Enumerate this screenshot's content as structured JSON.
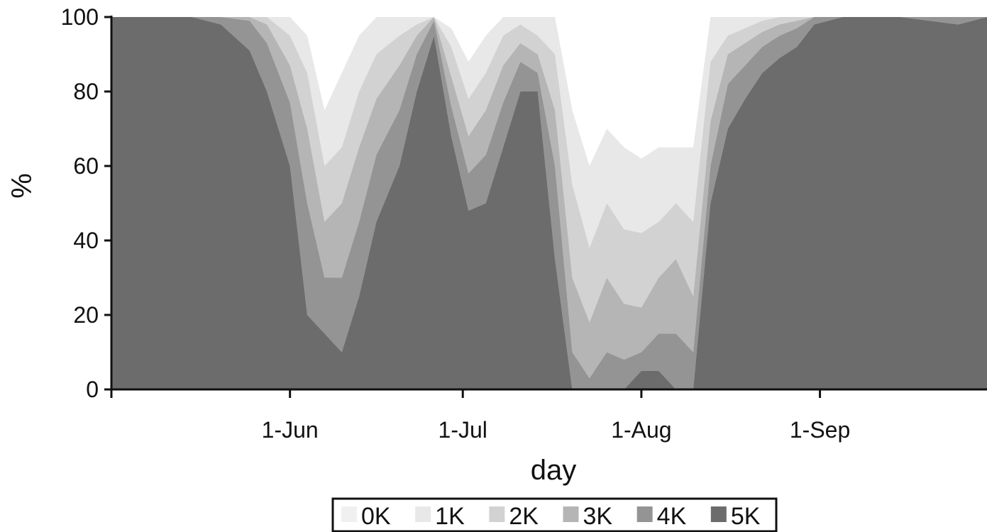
{
  "chart_data": {
    "type": "area",
    "stacked": true,
    "normalized_percent": true,
    "xlabel": "day",
    "ylabel": "%",
    "ylim": [
      0,
      100
    ],
    "y_ticks": [
      0,
      20,
      40,
      60,
      80,
      100
    ],
    "x_ticks": [
      {
        "date": "2015-06-01",
        "label": "1-Jun"
      },
      {
        "date": "2015-07-01",
        "label": "1-Jul"
      },
      {
        "date": "2015-08-01",
        "label": "1-Aug"
      },
      {
        "date": "2015-09-01",
        "label": "1-Sep"
      }
    ],
    "xlim": [
      "2015-05-01",
      "2015-09-30"
    ],
    "legend_position": "bottom-center",
    "grid": false,
    "x": [
      "2015-05-01",
      "2015-05-05",
      "2015-05-10",
      "2015-05-15",
      "2015-05-20",
      "2015-05-25",
      "2015-05-28",
      "2015-06-01",
      "2015-06-04",
      "2015-06-07",
      "2015-06-10",
      "2015-06-13",
      "2015-06-16",
      "2015-06-20",
      "2015-06-23",
      "2015-06-26",
      "2015-06-29",
      "2015-07-02",
      "2015-07-05",
      "2015-07-08",
      "2015-07-11",
      "2015-07-14",
      "2015-07-17",
      "2015-07-20",
      "2015-07-23",
      "2015-07-26",
      "2015-07-29",
      "2015-08-01",
      "2015-08-04",
      "2015-08-07",
      "2015-08-10",
      "2015-08-13",
      "2015-08-16",
      "2015-08-19",
      "2015-08-22",
      "2015-08-25",
      "2015-08-28",
      "2015-08-31",
      "2015-09-05",
      "2015-09-10",
      "2015-09-15",
      "2015-09-20",
      "2015-09-25",
      "2015-09-30"
    ],
    "series": [
      {
        "name": "0K",
        "color": "#ffffff",
        "values": [
          0,
          0,
          0,
          0,
          0,
          0,
          0,
          0,
          5,
          25,
          15,
          5,
          0,
          0,
          0,
          0,
          3,
          12,
          5,
          0,
          0,
          0,
          0,
          25,
          40,
          30,
          35,
          38,
          40,
          35,
          35,
          0,
          0,
          0,
          0,
          0,
          0,
          0,
          0,
          0,
          0,
          0,
          0,
          0
        ]
      },
      {
        "name": "1K",
        "color": "#e8e8e8",
        "values": [
          0,
          0,
          0,
          0,
          0,
          0,
          0,
          5,
          10,
          15,
          20,
          15,
          10,
          5,
          2,
          0,
          5,
          10,
          10,
          5,
          2,
          5,
          10,
          20,
          22,
          20,
          22,
          20,
          20,
          15,
          20,
          12,
          5,
          3,
          1,
          0,
          0,
          0,
          0,
          0,
          0,
          0,
          0,
          0
        ]
      },
      {
        "name": "2K",
        "color": "#d2d2d2",
        "values": [
          0,
          0,
          0,
          0,
          0,
          0,
          2,
          8,
          15,
          15,
          15,
          15,
          12,
          8,
          3,
          0,
          8,
          10,
          10,
          8,
          5,
          5,
          15,
          25,
          20,
          20,
          20,
          20,
          15,
          15,
          20,
          16,
          5,
          4,
          3,
          2,
          1,
          0,
          0,
          0,
          0,
          0,
          0,
          0
        ]
      },
      {
        "name": "3K",
        "color": "#b5b5b5",
        "values": [
          0,
          0,
          0,
          0,
          0,
          1,
          5,
          10,
          20,
          15,
          20,
          20,
          15,
          12,
          5,
          1,
          8,
          10,
          12,
          10,
          5,
          5,
          15,
          20,
          15,
          20,
          15,
          12,
          15,
          20,
          15,
          12,
          8,
          6,
          4,
          3,
          2,
          0,
          0,
          0,
          0,
          0,
          0,
          0
        ]
      },
      {
        "name": "4K",
        "color": "#949494",
        "values": [
          0,
          0,
          0,
          0,
          2,
          8,
          13,
          17,
          30,
          15,
          20,
          20,
          18,
          15,
          10,
          4,
          8,
          10,
          13,
          12,
          8,
          5,
          25,
          10,
          3,
          10,
          8,
          5,
          10,
          15,
          10,
          10,
          12,
          9,
          7,
          6,
          5,
          2,
          0,
          0,
          0,
          1,
          2,
          0
        ]
      },
      {
        "name": "5K",
        "color": "#6c6c6c",
        "values": [
          100,
          100,
          100,
          100,
          98,
          91,
          80,
          60,
          20,
          15,
          10,
          25,
          45,
          60,
          80,
          95,
          68,
          48,
          50,
          65,
          80,
          80,
          35,
          0,
          0,
          0,
          0,
          5,
          5,
          0,
          0,
          50,
          70,
          78,
          85,
          89,
          92,
          98,
          100,
          100,
          100,
          99,
          98,
          100
        ]
      }
    ]
  }
}
